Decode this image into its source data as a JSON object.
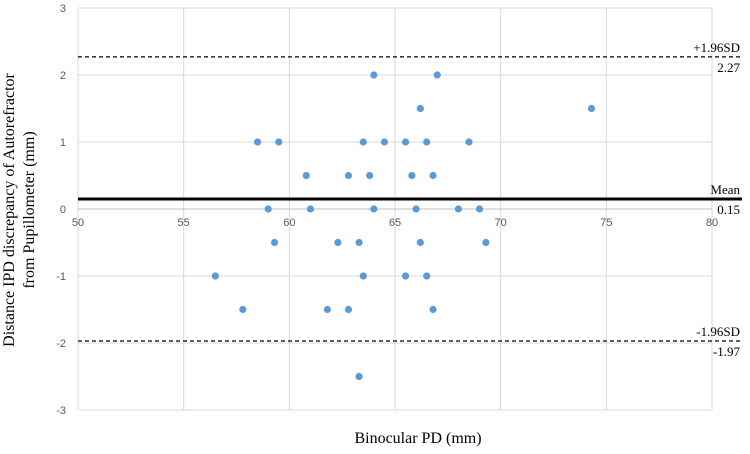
{
  "chart_data": {
    "type": "scatter",
    "title": "",
    "xlabel": "Binocular  PD (mm)",
    "ylabel_line1": "Distance  IPD discrepancy  of Autorefractor",
    "ylabel_line2": "from Pupillometer  (mm)",
    "xlim": [
      50,
      80
    ],
    "ylim": [
      -3,
      3
    ],
    "x_ticks": [
      "50",
      "55",
      "60",
      "65",
      "70",
      "75",
      "80"
    ],
    "y_ticks": [
      "-3",
      "-2",
      "-1",
      "0",
      "1",
      "2",
      "3"
    ],
    "grid": true,
    "point_color": "#5b9bd5",
    "reference_lines": [
      {
        "name": "upper-loa",
        "y": 2.27,
        "style": "dashed",
        "label": "+1.96SD",
        "value_label": "2.27"
      },
      {
        "name": "mean",
        "y": 0.15,
        "style": "solid",
        "label": "Mean",
        "value_label": "0.15"
      },
      {
        "name": "lower-loa",
        "y": -1.97,
        "style": "dashed",
        "label": "-1.96SD",
        "value_label": "-1.97"
      }
    ],
    "points": [
      {
        "x": 64.0,
        "y": 2.0
      },
      {
        "x": 67.0,
        "y": 2.0
      },
      {
        "x": 66.2,
        "y": 1.5
      },
      {
        "x": 74.3,
        "y": 1.5
      },
      {
        "x": 58.5,
        "y": 1.0
      },
      {
        "x": 59.5,
        "y": 1.0
      },
      {
        "x": 63.5,
        "y": 1.0
      },
      {
        "x": 64.5,
        "y": 1.0
      },
      {
        "x": 65.5,
        "y": 1.0
      },
      {
        "x": 66.5,
        "y": 1.0
      },
      {
        "x": 68.5,
        "y": 1.0
      },
      {
        "x": 60.8,
        "y": 0.5
      },
      {
        "x": 62.8,
        "y": 0.5
      },
      {
        "x": 63.8,
        "y": 0.5
      },
      {
        "x": 65.8,
        "y": 0.5
      },
      {
        "x": 66.8,
        "y": 0.5
      },
      {
        "x": 59.0,
        "y": 0.0
      },
      {
        "x": 61.0,
        "y": 0.0
      },
      {
        "x": 64.0,
        "y": 0.0
      },
      {
        "x": 66.0,
        "y": 0.0
      },
      {
        "x": 68.0,
        "y": 0.0
      },
      {
        "x": 69.0,
        "y": 0.0
      },
      {
        "x": 59.3,
        "y": -0.5
      },
      {
        "x": 62.3,
        "y": -0.5
      },
      {
        "x": 63.3,
        "y": -0.5
      },
      {
        "x": 66.2,
        "y": -0.5
      },
      {
        "x": 69.3,
        "y": -0.5
      },
      {
        "x": 56.5,
        "y": -1.0
      },
      {
        "x": 63.5,
        "y": -1.0
      },
      {
        "x": 65.5,
        "y": -1.0
      },
      {
        "x": 66.5,
        "y": -1.0
      },
      {
        "x": 57.8,
        "y": -1.5
      },
      {
        "x": 61.8,
        "y": -1.5
      },
      {
        "x": 62.8,
        "y": -1.5
      },
      {
        "x": 66.8,
        "y": -1.5
      },
      {
        "x": 63.3,
        "y": -2.5
      }
    ]
  }
}
